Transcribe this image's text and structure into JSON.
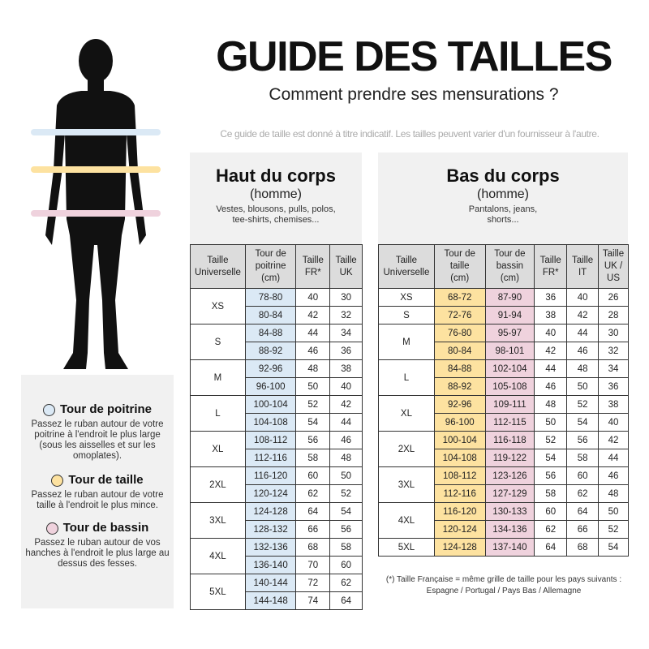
{
  "header": {
    "title": "GUIDE DES TAILLES",
    "subtitle": "Comment prendre ses mensurations ?",
    "note": "Ce guide de taille est donné à titre indicatif. Les tailles peuvent varier d'un fournisseur à l'autre."
  },
  "colors": {
    "chest": "#dbe9f5",
    "waist": "#fde2a0",
    "hips": "#efd2dd"
  },
  "legend": [
    {
      "title": "Tour de poitrine",
      "color": "#dbe9f5",
      "text": "Passez le ruban autour de votre poitrine à l'endroit le plus large (sous les aisselles et sur les omoplates)."
    },
    {
      "title": "Tour de taille",
      "color": "#fde2a0",
      "text": "Passez le ruban autour de votre taille à l'endroit le plus mince."
    },
    {
      "title": "Tour de bassin",
      "color": "#efd2dd",
      "text": "Passez le ruban autour de vos hanches à l'endroit le plus large au dessus des fesses."
    }
  ],
  "top": {
    "title": "Haut du corps",
    "gender": "(homme)",
    "desc": "Vestes, blousons, pulls, polos,\ntee-shirts, chemises...",
    "headers": [
      "Taille\nUniverselle",
      "Tour de\npoitrine\n(cm)",
      "Taille\nFR*",
      "Taille\nUK"
    ],
    "groups": [
      {
        "size": "XS",
        "rows": [
          [
            "78-80",
            "40",
            "30"
          ],
          [
            "80-84",
            "42",
            "32"
          ]
        ]
      },
      {
        "size": "S",
        "rows": [
          [
            "84-88",
            "44",
            "34"
          ],
          [
            "88-92",
            "46",
            "36"
          ]
        ]
      },
      {
        "size": "M",
        "rows": [
          [
            "92-96",
            "48",
            "38"
          ],
          [
            "96-100",
            "50",
            "40"
          ]
        ]
      },
      {
        "size": "L",
        "rows": [
          [
            "100-104",
            "52",
            "42"
          ],
          [
            "104-108",
            "54",
            "44"
          ]
        ]
      },
      {
        "size": "XL",
        "rows": [
          [
            "108-112",
            "56",
            "46"
          ],
          [
            "112-116",
            "58",
            "48"
          ]
        ]
      },
      {
        "size": "2XL",
        "rows": [
          [
            "116-120",
            "60",
            "50"
          ],
          [
            "120-124",
            "62",
            "52"
          ]
        ]
      },
      {
        "size": "3XL",
        "rows": [
          [
            "124-128",
            "64",
            "54"
          ],
          [
            "128-132",
            "66",
            "56"
          ]
        ]
      },
      {
        "size": "4XL",
        "rows": [
          [
            "132-136",
            "68",
            "58"
          ],
          [
            "136-140",
            "70",
            "60"
          ]
        ]
      },
      {
        "size": "5XL",
        "rows": [
          [
            "140-144",
            "72",
            "62"
          ],
          [
            "144-148",
            "74",
            "64"
          ]
        ]
      }
    ]
  },
  "bottom": {
    "title": "Bas du corps",
    "gender": "(homme)",
    "desc": "Pantalons, jeans,\nshorts...",
    "headers": [
      "Taille\nUniverselle",
      "Tour de\ntaille\n(cm)",
      "Tour de\nbassin\n(cm)",
      "Taille\nFR*",
      "Taille\nIT",
      "Taille\nUK /\nUS"
    ],
    "groups": [
      {
        "size": "XS",
        "rows": [
          [
            "68-72",
            "87-90",
            "36",
            "40",
            "26"
          ]
        ]
      },
      {
        "size": "S",
        "rows": [
          [
            "72-76",
            "91-94",
            "38",
            "42",
            "28"
          ]
        ]
      },
      {
        "size": "M",
        "rows": [
          [
            "76-80",
            "95-97",
            "40",
            "44",
            "30"
          ],
          [
            "80-84",
            "98-101",
            "42",
            "46",
            "32"
          ]
        ]
      },
      {
        "size": "L",
        "rows": [
          [
            "84-88",
            "102-104",
            "44",
            "48",
            "34"
          ],
          [
            "88-92",
            "105-108",
            "46",
            "50",
            "36"
          ]
        ]
      },
      {
        "size": "XL",
        "rows": [
          [
            "92-96",
            "109-111",
            "48",
            "52",
            "38"
          ],
          [
            "96-100",
            "112-115",
            "50",
            "54",
            "40"
          ]
        ]
      },
      {
        "size": "2XL",
        "rows": [
          [
            "100-104",
            "116-118",
            "52",
            "56",
            "42"
          ],
          [
            "104-108",
            "119-122",
            "54",
            "58",
            "44"
          ]
        ]
      },
      {
        "size": "3XL",
        "rows": [
          [
            "108-112",
            "123-126",
            "56",
            "60",
            "46"
          ],
          [
            "112-116",
            "127-129",
            "58",
            "62",
            "48"
          ]
        ]
      },
      {
        "size": "4XL",
        "rows": [
          [
            "116-120",
            "130-133",
            "60",
            "64",
            "50"
          ],
          [
            "120-124",
            "134-136",
            "62",
            "66",
            "52"
          ]
        ]
      },
      {
        "size": "5XL",
        "rows": [
          [
            "124-128",
            "137-140",
            "64",
            "68",
            "54"
          ]
        ]
      }
    ]
  },
  "footnote": {
    "line1": "(*) Taille Française = même grille de taille pour les pays suivants :",
    "line2": "Espagne / Portugal / Pays Bas / Allemagne"
  }
}
